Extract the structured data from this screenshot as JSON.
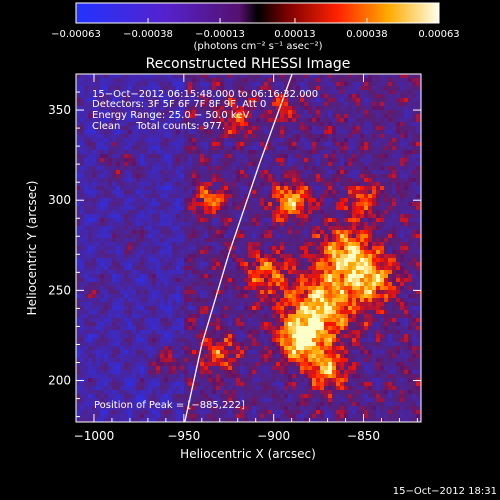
{
  "chart_data": {
    "type": "heatmap",
    "title": "Reconstructed RHESSI Image",
    "xlabel": "Heliocentric X (arcsec)",
    "ylabel": "Heliocentric Y (arcsec)",
    "xlim": [
      -1010,
      -818
    ],
    "ylim": [
      177,
      370
    ],
    "x_ticks": [
      -1000,
      -950,
      -900,
      -850
    ],
    "x_tick_labels": [
      "−1000",
      "−950",
      "−900",
      "−850"
    ],
    "y_ticks": [
      200,
      250,
      300,
      350
    ],
    "y_tick_labels": [
      "200",
      "250",
      "300",
      "350"
    ],
    "colorbar": {
      "min": -0.00063,
      "max": 0.00063,
      "tick_values": [
        -0.00063,
        -0.00038,
        -0.00013,
        0.00013,
        0.00038,
        0.00063
      ],
      "tick_labels": [
        "−0.00063",
        "−0.00038",
        "−0.00013",
        "0.00013",
        "0.00038",
        "0.00063"
      ],
      "units": "(photons cm⁻² s⁻¹ asec⁻²)"
    },
    "annotations": {
      "time_range": "15−Oct−2012 06:15:48.000 to 06:16:32.000",
      "detectors": "Detectors: 3F 5F 6F 7F 8F 9F, Att 0",
      "energy": "Energy Range: 25.0 − 50.0 keV",
      "clean": "Clean     Total counts: 977.",
      "peak": "Position of Peak = [−885,222]"
    },
    "peak_position": [
      -885,
      222
    ],
    "limb_arc": true
  },
  "footer": {
    "timestamp": "15−Oct−2012 18:31"
  }
}
